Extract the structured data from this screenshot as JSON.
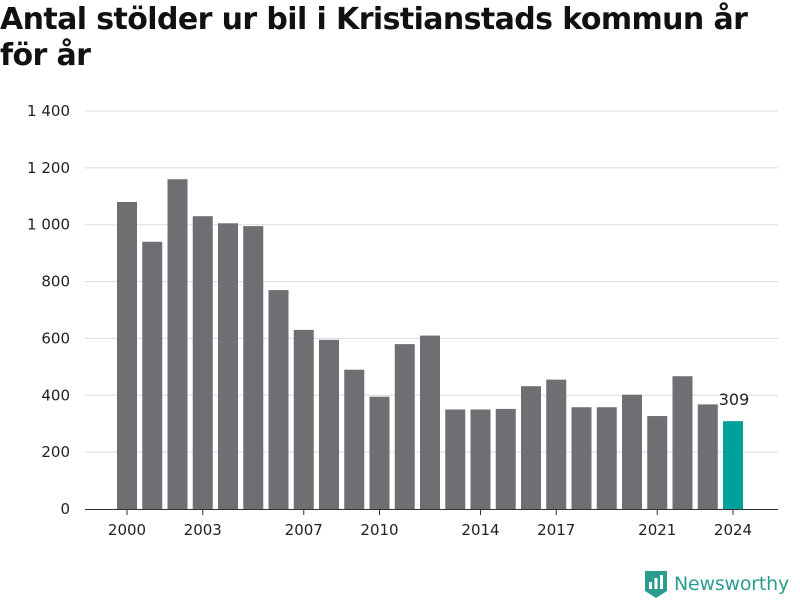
{
  "chart_data": {
    "type": "bar",
    "title": "Antal stölder ur bil i Kristianstads kommun år för år",
    "xlabel": "",
    "ylabel": "",
    "x": [
      2000,
      2001,
      2002,
      2003,
      2004,
      2005,
      2006,
      2007,
      2008,
      2009,
      2010,
      2011,
      2012,
      2013,
      2014,
      2015,
      2016,
      2017,
      2018,
      2019,
      2020,
      2021,
      2022,
      2023,
      2024
    ],
    "values": [
      1080,
      940,
      1160,
      1030,
      1005,
      995,
      770,
      630,
      595,
      490,
      395,
      580,
      610,
      350,
      350,
      352,
      432,
      455,
      358,
      358,
      402,
      327,
      467,
      368,
      309
    ],
    "ylim": [
      0,
      1400
    ],
    "yticks": [
      0,
      200,
      400,
      600,
      800,
      1000,
      1200,
      1400
    ],
    "ytick_labels": [
      "0",
      "200",
      "400",
      "600",
      "800",
      "1 000",
      "1 200",
      "1 400"
    ],
    "xticks": [
      2000,
      2003,
      2007,
      2010,
      2014,
      2017,
      2021,
      2024
    ],
    "xtick_labels": [
      "2000",
      "2003",
      "2007",
      "2010",
      "2014",
      "2017",
      "2021",
      "2024"
    ],
    "highlight_index": 24,
    "highlight_label": "309",
    "grid": "horizontal",
    "legend": "none",
    "colors": {
      "bar": "#6f6f73",
      "highlight": "#00a19a",
      "grid": "#dcdcdc",
      "axis": "#333333"
    }
  },
  "branding": {
    "name": "Newsworthy",
    "color": "#2a9d8f",
    "icon": "newsworthy-logo-icon"
  }
}
